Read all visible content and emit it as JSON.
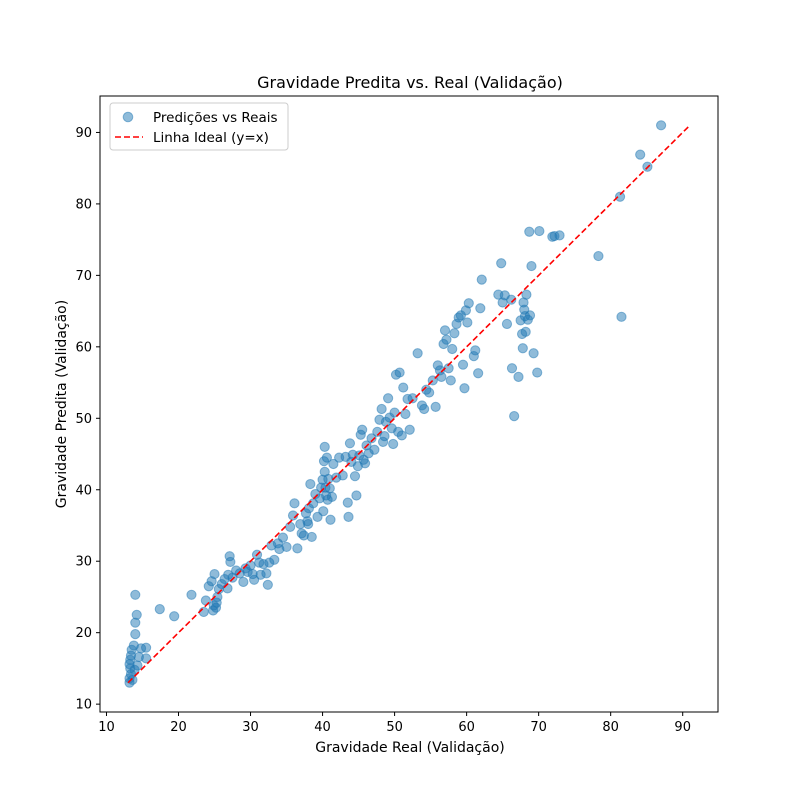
{
  "chart_data": {
    "type": "scatter",
    "title": "Gravidade Predita vs. Real (Validação)",
    "xlabel": "Gravidade Real (Validação)",
    "ylabel": "Gravidade Predita (Validação)",
    "xlim": [
      9.1,
      94.9
    ],
    "ylim": [
      8.9,
      95.1
    ],
    "xticks": [
      10,
      20,
      30,
      40,
      50,
      60,
      70,
      80,
      90
    ],
    "yticks": [
      10,
      20,
      30,
      40,
      50,
      60,
      70,
      80,
      90
    ],
    "grid": false,
    "legend_position": "top-left",
    "series": [
      {
        "name": "Predições vs Reais",
        "kind": "scatter",
        "color": "#1f77b4",
        "alpha": 0.5,
        "points": [
          [
            13.2,
            13.0
          ],
          [
            13.2,
            13.6
          ],
          [
            13.4,
            14.2
          ],
          [
            13.3,
            15.0
          ],
          [
            13.2,
            15.6
          ],
          [
            13.3,
            16.2
          ],
          [
            13.4,
            16.8
          ],
          [
            13.5,
            17.6
          ],
          [
            13.8,
            18.2
          ],
          [
            14.0,
            19.8
          ],
          [
            14.0,
            21.4
          ],
          [
            14.2,
            22.5
          ],
          [
            14.0,
            25.3
          ],
          [
            13.6,
            13.4
          ],
          [
            13.9,
            14.8
          ],
          [
            14.3,
            15.4
          ],
          [
            14.5,
            16.6
          ],
          [
            14.8,
            17.8
          ],
          [
            15.5,
            16.4
          ],
          [
            15.5,
            17.9
          ],
          [
            17.4,
            23.3
          ],
          [
            19.4,
            22.3
          ],
          [
            21.8,
            25.3
          ],
          [
            23.5,
            22.9
          ],
          [
            23.8,
            24.5
          ],
          [
            24.2,
            26.5
          ],
          [
            24.6,
            27.2
          ],
          [
            24.8,
            23.1
          ],
          [
            24.9,
            23.8
          ],
          [
            25.0,
            28.2
          ],
          [
            25.2,
            23.5
          ],
          [
            25.3,
            24.2
          ],
          [
            25.4,
            25.0
          ],
          [
            25.6,
            26.1
          ],
          [
            26.0,
            26.8
          ],
          [
            26.4,
            27.5
          ],
          [
            26.8,
            26.2
          ],
          [
            26.9,
            28.1
          ],
          [
            27.1,
            30.7
          ],
          [
            27.2,
            29.9
          ],
          [
            27.5,
            27.7
          ],
          [
            28.0,
            28.7
          ],
          [
            28.5,
            28.3
          ],
          [
            29.0,
            27.1
          ],
          [
            29.3,
            29.0
          ],
          [
            29.6,
            28.5
          ],
          [
            30.0,
            29.4
          ],
          [
            30.3,
            28.2
          ],
          [
            30.5,
            27.4
          ],
          [
            30.9,
            30.9
          ],
          [
            31.2,
            29.8
          ],
          [
            31.4,
            28.1
          ],
          [
            31.8,
            29.6
          ],
          [
            32.2,
            28.3
          ],
          [
            32.4,
            26.7
          ],
          [
            32.6,
            29.8
          ],
          [
            32.9,
            32.2
          ],
          [
            33.3,
            30.2
          ],
          [
            33.8,
            32.5
          ],
          [
            34.0,
            31.7
          ],
          [
            34.5,
            33.3
          ],
          [
            35.0,
            32.0
          ],
          [
            35.5,
            34.8
          ],
          [
            35.9,
            36.4
          ],
          [
            36.1,
            38.1
          ],
          [
            36.5,
            31.8
          ],
          [
            36.9,
            35.2
          ],
          [
            37.1,
            33.9
          ],
          [
            37.4,
            33.6
          ],
          [
            37.7,
            36.7
          ],
          [
            37.9,
            35.6
          ],
          [
            38.0,
            35.2
          ],
          [
            38.1,
            37.4
          ],
          [
            38.3,
            40.8
          ],
          [
            38.5,
            33.4
          ],
          [
            38.7,
            38.1
          ],
          [
            39.0,
            39.4
          ],
          [
            39.3,
            36.2
          ],
          [
            39.6,
            38.8
          ],
          [
            39.8,
            40.3
          ],
          [
            40.0,
            41.4
          ],
          [
            40.1,
            37.0
          ],
          [
            40.2,
            44.0
          ],
          [
            40.3,
            46.0
          ],
          [
            40.3,
            42.5
          ],
          [
            40.4,
            40.3
          ],
          [
            40.5,
            39.2
          ],
          [
            40.6,
            44.5
          ],
          [
            40.7,
            38.6
          ],
          [
            40.8,
            41.5
          ],
          [
            41.0,
            40.2
          ],
          [
            41.1,
            35.8
          ],
          [
            41.3,
            39.0
          ],
          [
            41.5,
            43.6
          ],
          [
            41.9,
            41.7
          ],
          [
            42.3,
            44.5
          ],
          [
            42.8,
            42.0
          ],
          [
            43.2,
            44.6
          ],
          [
            43.5,
            38.2
          ],
          [
            43.6,
            36.2
          ],
          [
            43.8,
            46.5
          ],
          [
            44.0,
            43.9
          ],
          [
            44.2,
            44.9
          ],
          [
            44.5,
            41.9
          ],
          [
            44.7,
            39.2
          ],
          [
            44.9,
            43.3
          ],
          [
            45.1,
            44.8
          ],
          [
            45.3,
            47.7
          ],
          [
            45.5,
            48.4
          ],
          [
            45.7,
            44.2
          ],
          [
            45.9,
            43.7
          ],
          [
            46.1,
            46.2
          ],
          [
            46.4,
            45.1
          ],
          [
            46.8,
            47.2
          ],
          [
            47.2,
            45.6
          ],
          [
            47.6,
            48.1
          ],
          [
            47.9,
            49.8
          ],
          [
            48.2,
            51.3
          ],
          [
            48.4,
            46.7
          ],
          [
            48.6,
            47.5
          ],
          [
            48.8,
            49.5
          ],
          [
            49.1,
            52.8
          ],
          [
            49.3,
            50.1
          ],
          [
            49.6,
            48.6
          ],
          [
            49.8,
            46.4
          ],
          [
            50.0,
            50.8
          ],
          [
            50.2,
            56.1
          ],
          [
            50.5,
            48.1
          ],
          [
            50.7,
            56.4
          ],
          [
            51.0,
            47.6
          ],
          [
            51.2,
            54.3
          ],
          [
            51.5,
            50.6
          ],
          [
            51.8,
            52.7
          ],
          [
            52.1,
            48.4
          ],
          [
            52.5,
            52.8
          ],
          [
            53.2,
            59.1
          ],
          [
            53.8,
            51.8
          ],
          [
            54.1,
            51.3
          ],
          [
            54.4,
            54.0
          ],
          [
            54.8,
            53.6
          ],
          [
            55.3,
            55.3
          ],
          [
            55.7,
            51.6
          ],
          [
            56.0,
            57.4
          ],
          [
            56.3,
            56.7
          ],
          [
            56.5,
            55.8
          ],
          [
            56.8,
            60.4
          ],
          [
            57.0,
            62.3
          ],
          [
            57.2,
            61.0
          ],
          [
            57.5,
            57.0
          ],
          [
            57.8,
            55.3
          ],
          [
            58.0,
            59.7
          ],
          [
            58.3,
            61.9
          ],
          [
            58.6,
            63.2
          ],
          [
            58.9,
            64.1
          ],
          [
            59.2,
            64.4
          ],
          [
            59.5,
            57.5
          ],
          [
            59.7,
            54.2
          ],
          [
            59.9,
            65.1
          ],
          [
            60.1,
            63.4
          ],
          [
            60.3,
            66.1
          ],
          [
            61.0,
            58.7
          ],
          [
            61.2,
            59.5
          ],
          [
            61.6,
            56.3
          ],
          [
            61.9,
            65.4
          ],
          [
            62.1,
            69.4
          ],
          [
            64.4,
            67.3
          ],
          [
            64.8,
            71.7
          ],
          [
            65.0,
            66.2
          ],
          [
            65.3,
            67.2
          ],
          [
            65.6,
            63.2
          ],
          [
            66.2,
            66.6
          ],
          [
            66.3,
            57.0
          ],
          [
            66.6,
            50.3
          ],
          [
            67.2,
            55.8
          ],
          [
            67.5,
            63.7
          ],
          [
            67.7,
            61.8
          ],
          [
            67.8,
            59.8
          ],
          [
            67.9,
            66.2
          ],
          [
            68.0,
            65.2
          ],
          [
            68.1,
            64.3
          ],
          [
            68.2,
            62.1
          ],
          [
            68.3,
            67.3
          ],
          [
            68.5,
            63.8
          ],
          [
            68.8,
            64.4
          ],
          [
            68.7,
            76.1
          ],
          [
            69.0,
            71.3
          ],
          [
            69.3,
            59.1
          ],
          [
            69.8,
            56.4
          ],
          [
            70.1,
            76.2
          ],
          [
            71.9,
            75.4
          ],
          [
            72.2,
            75.5
          ],
          [
            72.9,
            75.6
          ],
          [
            78.3,
            72.7
          ],
          [
            81.3,
            81.0
          ],
          [
            81.5,
            64.2
          ],
          [
            84.1,
            86.9
          ],
          [
            85.1,
            85.2
          ],
          [
            87.0,
            91.0
          ]
        ]
      },
      {
        "name": "Linha Ideal (y=x)",
        "kind": "line",
        "color": "#ff0000",
        "dash": "dashed",
        "x": [
          13.0,
          91.0
        ],
        "y": [
          13.0,
          91.0
        ]
      }
    ]
  }
}
